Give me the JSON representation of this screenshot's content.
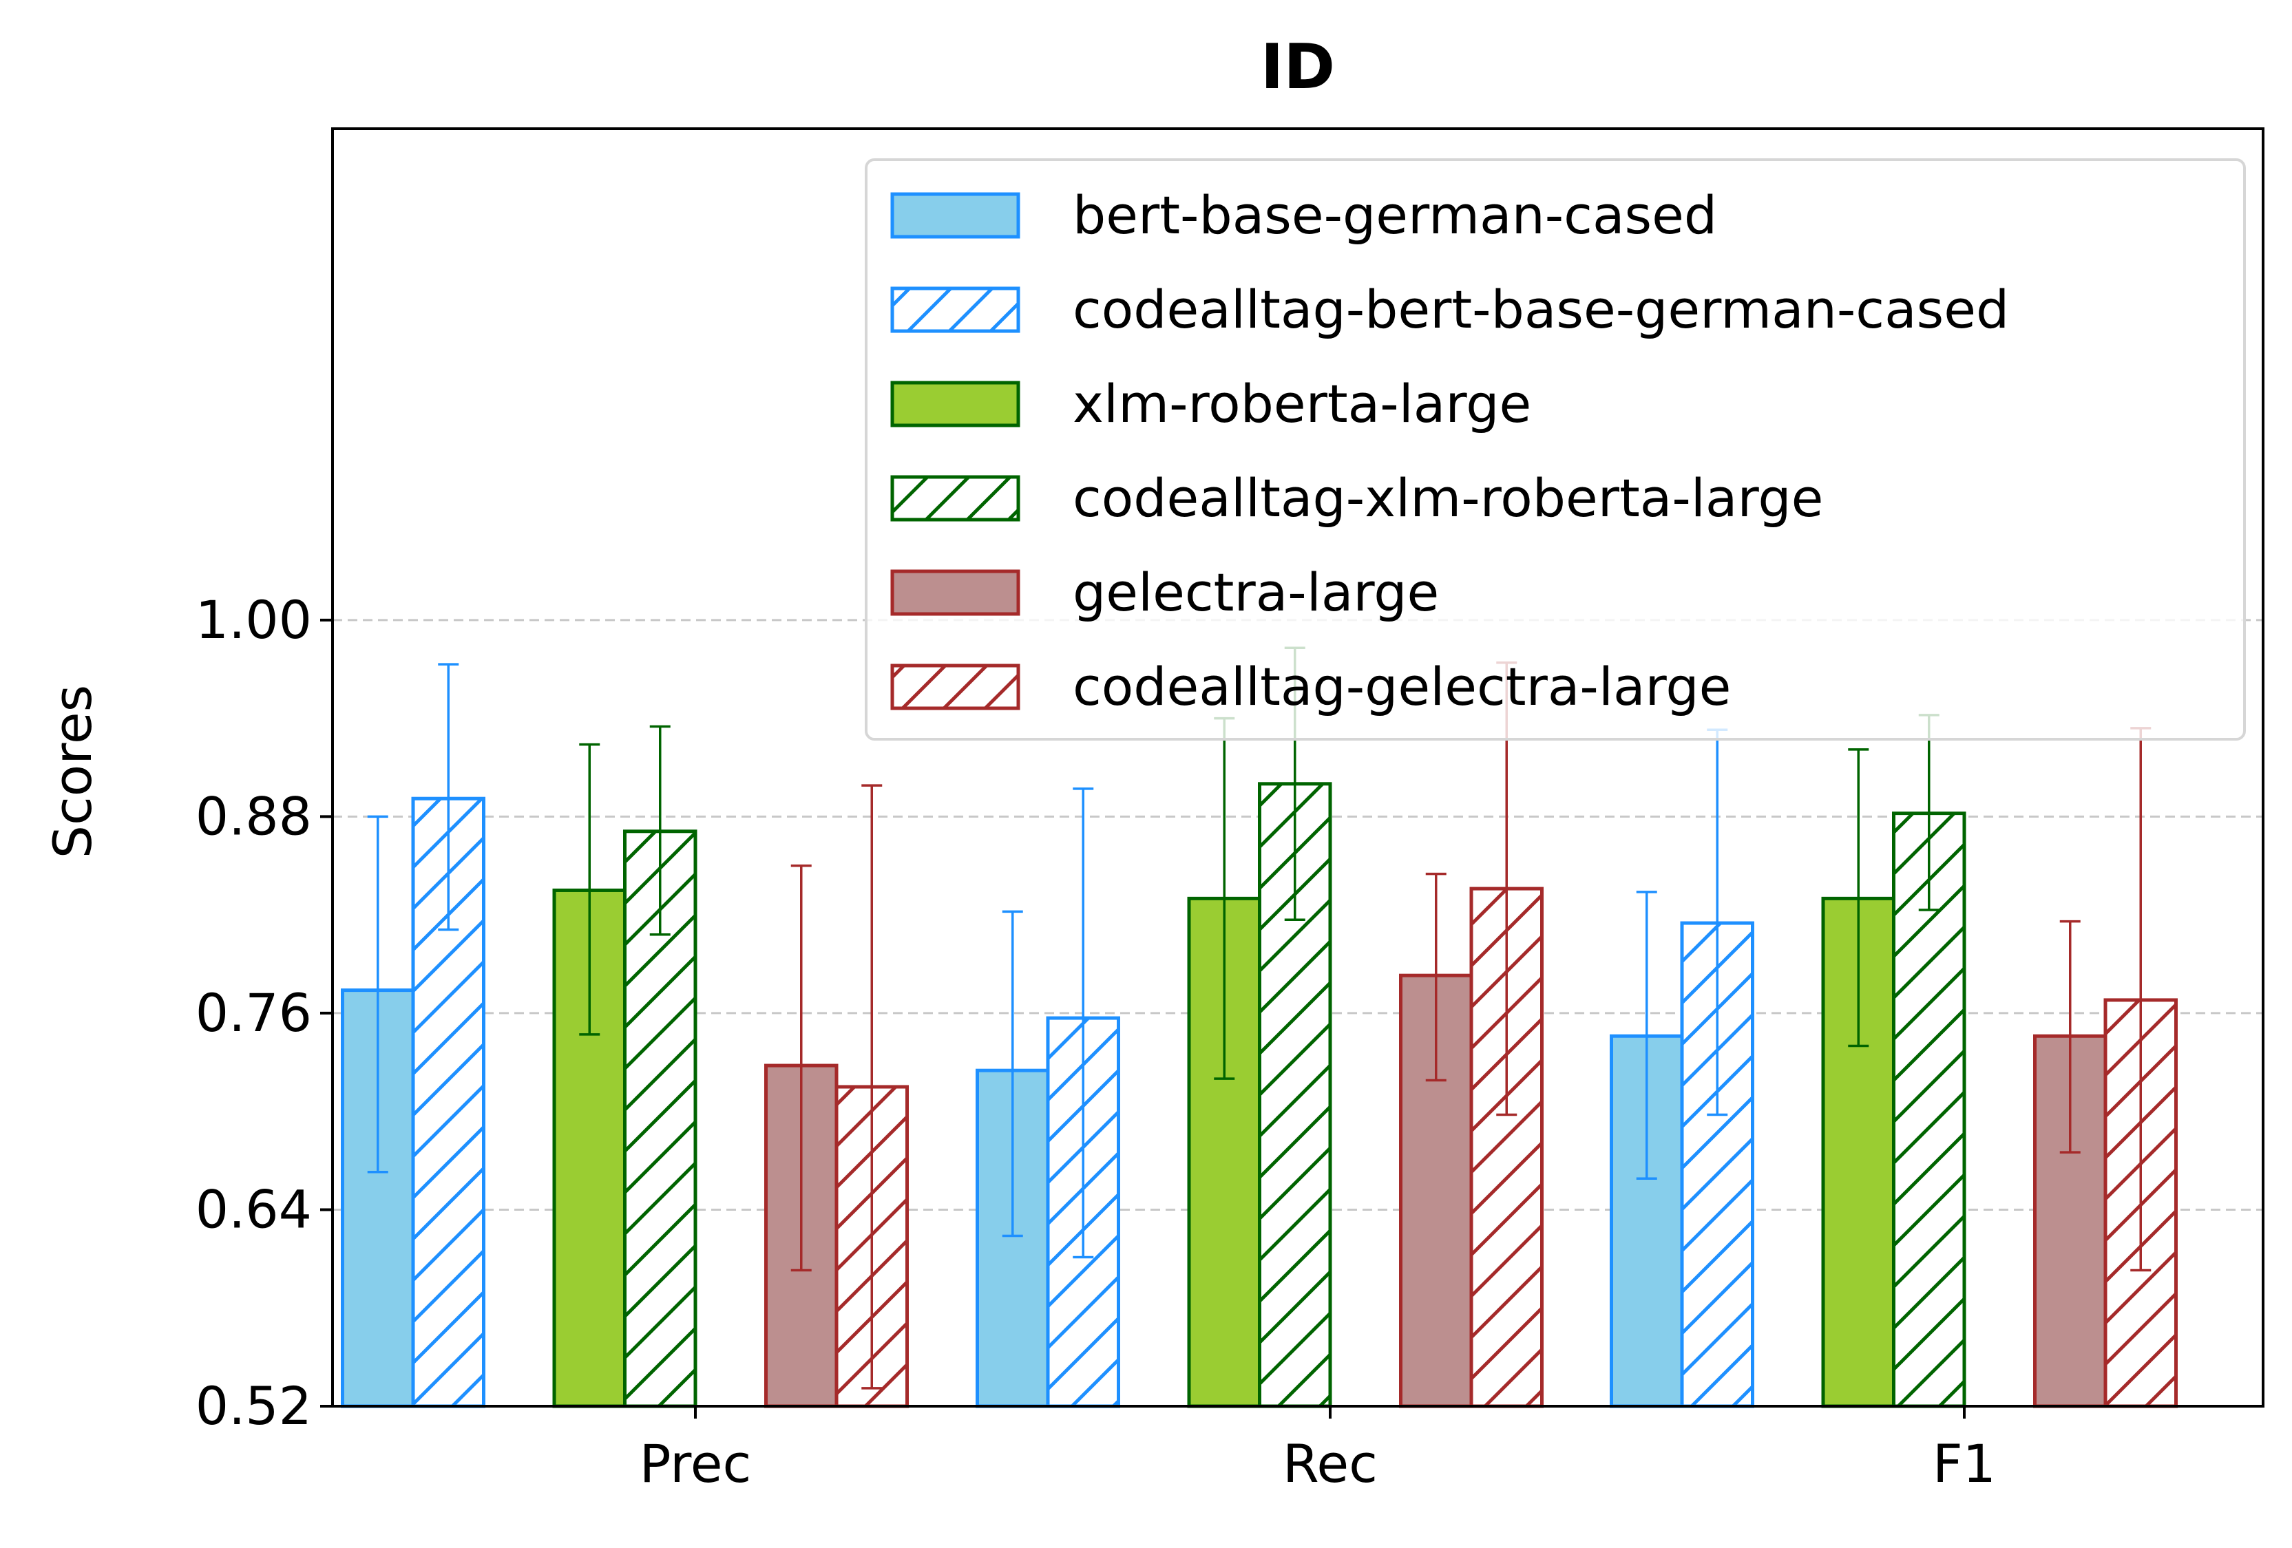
{
  "chart_data": {
    "type": "bar",
    "title": "ID",
    "xlabel": "",
    "ylabel": "Scores",
    "ylim": [
      0.52,
      1.3
    ],
    "yticks": [
      "0.52",
      "0.64",
      "0.76",
      "0.88",
      "1.00"
    ],
    "grid": "horizontal dashed",
    "legend_position": "top-right",
    "categories": [
      "Prec",
      "Rec",
      "F1"
    ],
    "series": [
      {
        "name": "bert-base-german-cased",
        "values": [
          0.774,
          0.725,
          0.746
        ],
        "err_low": [
          0.111,
          0.101,
          0.087
        ],
        "err_high": [
          0.106,
          0.097,
          0.088
        ],
        "fill": "#87CEEB",
        "edge": "#1E90FF",
        "hatch": false
      },
      {
        "name": "codealltag-bert-base-german-cased",
        "values": [
          0.891,
          0.757,
          0.815
        ],
        "err_low": [
          0.08,
          0.146,
          0.117
        ],
        "err_high": [
          0.082,
          0.14,
          0.118
        ],
        "fill": "#ffffff",
        "edge": "#1E90FF",
        "hatch": true
      },
      {
        "name": "xlm-roberta-large",
        "values": [
          0.835,
          0.83,
          0.83
        ],
        "err_low": [
          0.088,
          0.11,
          0.09
        ],
        "err_high": [
          0.089,
          0.11,
          0.091
        ],
        "fill": "#9ACD32",
        "edge": "#006400",
        "hatch": false
      },
      {
        "name": "codealltag-xlm-roberta-large",
        "values": [
          0.871,
          0.9,
          0.882
        ],
        "err_low": [
          0.063,
          0.083,
          0.059
        ],
        "err_high": [
          0.064,
          0.083,
          0.06
        ],
        "fill": "#ffffff",
        "edge": "#006400",
        "hatch": true
      },
      {
        "name": "gelectra-large",
        "values": [
          0.728,
          0.783,
          0.746
        ],
        "err_low": [
          0.125,
          0.064,
          0.071
        ],
        "err_high": [
          0.122,
          0.062,
          0.07
        ],
        "fill": "#BC8F8F",
        "edge": "#A52A2A",
        "hatch": false
      },
      {
        "name": "codealltag-gelectra-large",
        "values": [
          0.715,
          0.836,
          0.768
        ],
        "err_low": [
          0.184,
          0.138,
          0.165
        ],
        "err_high": [
          0.184,
          0.138,
          0.166
        ],
        "fill": "#ffffff",
        "edge": "#A52A2A",
        "hatch": true
      }
    ]
  }
}
